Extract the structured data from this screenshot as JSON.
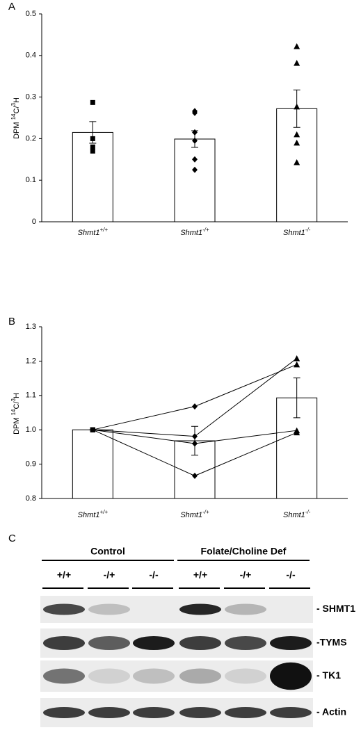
{
  "chart_data": [
    {
      "type": "bar",
      "panel": "A",
      "y_label": {
        "unit": "DPM ",
        "iso1": "14",
        "mid": "C/",
        "iso2": "3",
        "end": "H"
      },
      "gene": "Shmt1",
      "categories": [
        "+/+",
        "-/+",
        "-/-"
      ],
      "values": [
        0.215,
        0.199,
        0.272
      ],
      "errors": [
        0.026,
        0.02,
        0.045
      ],
      "points": [
        [
          0.287,
          0.2,
          0.18,
          0.17
        ],
        [
          0.266,
          0.262,
          0.215,
          0.195,
          0.15,
          0.125
        ],
        [
          0.422,
          0.382,
          0.277,
          0.21,
          0.19,
          0.143
        ]
      ],
      "markers": [
        "square",
        "diamond",
        "triangle"
      ],
      "ylim": [
        0,
        0.5
      ],
      "yticks": [
        0,
        0.1,
        0.2,
        0.3,
        0.4,
        0.5
      ],
      "color": "#ffffff"
    },
    {
      "type": "bar",
      "panel": "B",
      "y_label": {
        "unit": "DPM ",
        "iso1": "14",
        "mid": "C/",
        "iso2": "3",
        "end": "H"
      },
      "gene": "Shmt1",
      "categories": [
        "+/+",
        "-/+",
        "-/-"
      ],
      "values": [
        1.0,
        0.968,
        1.093
      ],
      "errors": [
        0,
        0.042,
        0.058
      ],
      "lines": [
        [
          1.0,
          1.068,
          1.19
        ],
        [
          1.0,
          0.981,
          1.208
        ],
        [
          1.0,
          0.96,
          0.998
        ],
        [
          1.0,
          0.866,
          0.992
        ]
      ],
      "markers": [
        "square",
        "diamond",
        "triangle"
      ],
      "ylim": [
        0.8,
        1.3
      ],
      "yticks": [
        0.8,
        0.9,
        {
          "value": 1.0,
          "label": "1.0"
        },
        1.1,
        1.2,
        1.3
      ],
      "color": "#ffffff"
    }
  ],
  "blot": {
    "panel": "C",
    "groups": [
      "Control",
      "Folate/Choline Def"
    ],
    "lanes": [
      "+/+",
      "-/+",
      "-/-",
      "+/+",
      "-/+",
      "-/-"
    ],
    "bands": [
      "- SHMT1",
      "-TYMS",
      "- TK1",
      "- Actin"
    ]
  }
}
